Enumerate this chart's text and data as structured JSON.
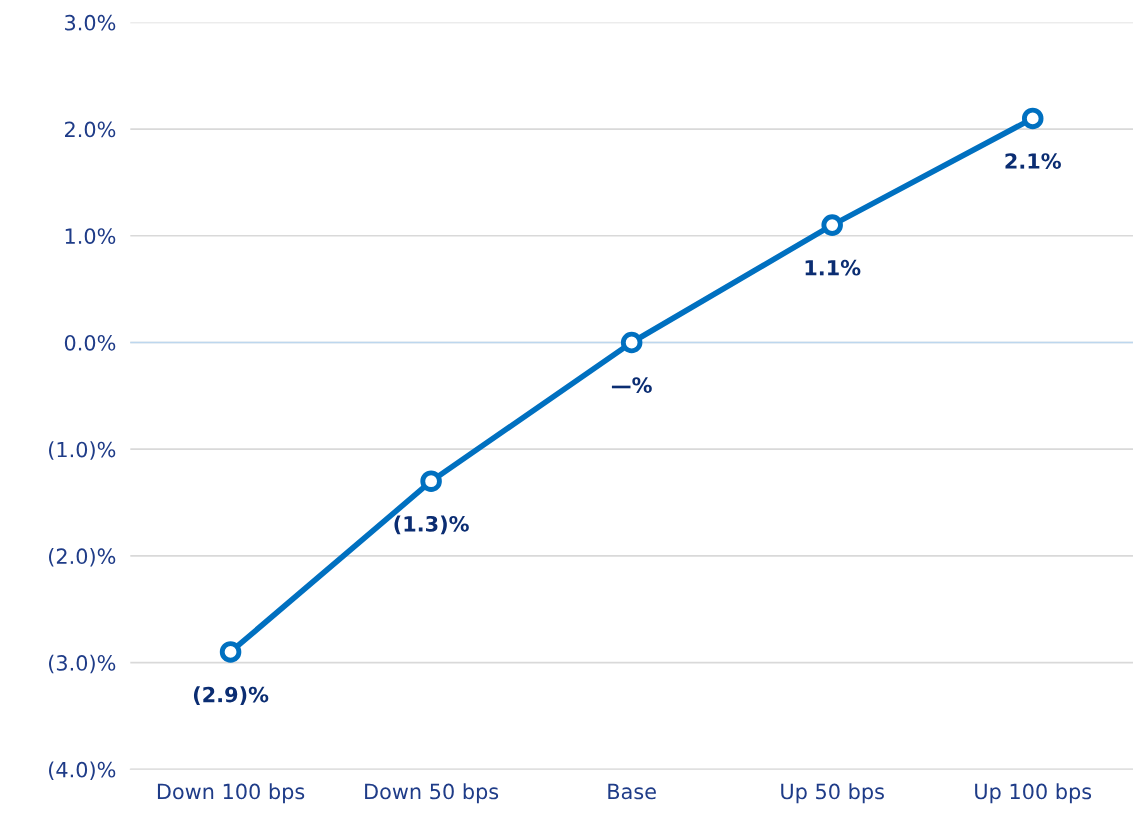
{
  "chart_data": {
    "type": "line",
    "categories": [
      "Down 100 bps",
      "Down 50 bps",
      "Base",
      "Up 50 bps",
      "Up 100 bps"
    ],
    "series": [
      {
        "color": "#0070c0",
        "values": [
          -2.9,
          -1.3,
          0,
          1.1,
          2.1
        ],
        "value_labels": [
          "(2.9)%",
          "(1.3)%",
          "—%",
          "1.1%",
          "2.1%"
        ]
      }
    ],
    "ylim": [
      -4,
      3
    ],
    "yticks": [
      {
        "value": -4,
        "label": "(4.0)%"
      },
      {
        "value": -3,
        "label": "(3.0)%"
      },
      {
        "value": -2,
        "label": "(2.0)%"
      },
      {
        "value": -1,
        "label": "(1.0)%"
      },
      {
        "value": 0,
        "label": "0.0%"
      },
      {
        "value": 1,
        "label": "1.0%"
      },
      {
        "value": 2,
        "label": "2.0%"
      },
      {
        "value": 3,
        "label": "3.0%"
      }
    ],
    "ref_lines": [
      {
        "axis": "y",
        "value": 0,
        "color": "#bdd7ee"
      }
    ],
    "grid": "y",
    "marker": "circle",
    "line_style": "solid"
  }
}
